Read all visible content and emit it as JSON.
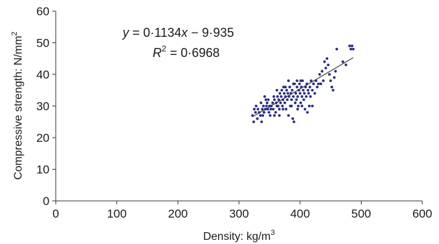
{
  "chart_data": {
    "type": "scatter",
    "xlabel": "Density: kg/m",
    "xlabel_superscript": "3",
    "ylabel": "Compressive strength: N/mm",
    "ylabel_superscript": "2",
    "xlim": [
      0,
      600
    ],
    "ylim": [
      0,
      60
    ],
    "xticks": [
      0,
      100,
      200,
      300,
      400,
      500,
      600
    ],
    "yticks": [
      0,
      10,
      20,
      30,
      40,
      50,
      60
    ],
    "grid": false,
    "marker_color": "#2b2d7c",
    "trendline_color": "#555555",
    "annotations": {
      "equation": {
        "y_var": "y",
        "equals": " = 0·1134",
        "x_var": "x",
        "rest": " − 9·935"
      },
      "r2": {
        "var": "R",
        "exp": "2",
        "rest": " = 0·6968"
      }
    },
    "trendline": {
      "slope": 0.1134,
      "intercept": -9.935,
      "x_range": [
        322,
        487
      ]
    },
    "points": [
      [
        322,
        27
      ],
      [
        324,
        25
      ],
      [
        325,
        29
      ],
      [
        327,
        28
      ],
      [
        328,
        30
      ],
      [
        330,
        26
      ],
      [
        331,
        29
      ],
      [
        333,
        28
      ],
      [
        335,
        27
      ],
      [
        336,
        31
      ],
      [
        337,
        25
      ],
      [
        338,
        29
      ],
      [
        340,
        30
      ],
      [
        341,
        28
      ],
      [
        342,
        33
      ],
      [
        343,
        29
      ],
      [
        345,
        30
      ],
      [
        346,
        31
      ],
      [
        347,
        29
      ],
      [
        348,
        32
      ],
      [
        350,
        30
      ],
      [
        351,
        27
      ],
      [
        353,
        30
      ],
      [
        355,
        31
      ],
      [
        356,
        29
      ],
      [
        358,
        32
      ],
      [
        360,
        28
      ],
      [
        361,
        31
      ],
      [
        362,
        30
      ],
      [
        363,
        33
      ],
      [
        364,
        30
      ],
      [
        365,
        32
      ],
      [
        366,
        29
      ],
      [
        367,
        34
      ],
      [
        368,
        31
      ],
      [
        369,
        33
      ],
      [
        370,
        35
      ],
      [
        371,
        30
      ],
      [
        372,
        32
      ],
      [
        373,
        36
      ],
      [
        374,
        34
      ],
      [
        375,
        31
      ],
      [
        376,
        33
      ],
      [
        377,
        29
      ],
      [
        378,
        35
      ],
      [
        379,
        32
      ],
      [
        380,
        34
      ],
      [
        381,
        27
      ],
      [
        382,
        33
      ],
      [
        383,
        36
      ],
      [
        384,
        30
      ],
      [
        385,
        34
      ],
      [
        386,
        32
      ],
      [
        387,
        35
      ],
      [
        388,
        26
      ],
      [
        389,
        33
      ],
      [
        390,
        25
      ],
      [
        391,
        37
      ],
      [
        392,
        31
      ],
      [
        393,
        34
      ],
      [
        394,
        32
      ],
      [
        395,
        36
      ],
      [
        396,
        33
      ],
      [
        397,
        30
      ],
      [
        398,
        35
      ],
      [
        399,
        37
      ],
      [
        400,
        34
      ],
      [
        401,
        31
      ],
      [
        402,
        36
      ],
      [
        403,
        33
      ],
      [
        404,
        38
      ],
      [
        405,
        35
      ],
      [
        406,
        32
      ],
      [
        407,
        34
      ],
      [
        408,
        29
      ],
      [
        409,
        36
      ],
      [
        410,
        33
      ],
      [
        411,
        37
      ],
      [
        412,
        28
      ],
      [
        413,
        35
      ],
      [
        414,
        34
      ],
      [
        415,
        30
      ],
      [
        416,
        36
      ],
      [
        417,
        33
      ],
      [
        418,
        38
      ],
      [
        420,
        35
      ],
      [
        422,
        37
      ],
      [
        424,
        34
      ],
      [
        426,
        38
      ],
      [
        428,
        36
      ],
      [
        430,
        37
      ],
      [
        432,
        40
      ],
      [
        434,
        37
      ],
      [
        436,
        41
      ],
      [
        438,
        38
      ],
      [
        440,
        44
      ],
      [
        442,
        42
      ],
      [
        444,
        45
      ],
      [
        446,
        43
      ],
      [
        448,
        40
      ],
      [
        450,
        38
      ],
      [
        452,
        36
      ],
      [
        454,
        35
      ],
      [
        456,
        39
      ],
      [
        458,
        41
      ],
      [
        460,
        48
      ],
      [
        470,
        44
      ],
      [
        475,
        43
      ],
      [
        481,
        49
      ],
      [
        483,
        48
      ],
      [
        485,
        49
      ],
      [
        487,
        48
      ],
      [
        358,
        27
      ],
      [
        366,
        27
      ],
      [
        372,
        29
      ],
      [
        386,
        30
      ],
      [
        396,
        29
      ],
      [
        403,
        30
      ],
      [
        420,
        30
      ],
      [
        362,
        35
      ],
      [
        376,
        36
      ],
      [
        389,
        37
      ],
      [
        381,
        38
      ],
      [
        395,
        38
      ],
      [
        401,
        38
      ],
      [
        344,
        32
      ],
      [
        352,
        29
      ],
      [
        357,
        33
      ],
      [
        349,
        28
      ],
      [
        339,
        27
      ]
    ]
  }
}
